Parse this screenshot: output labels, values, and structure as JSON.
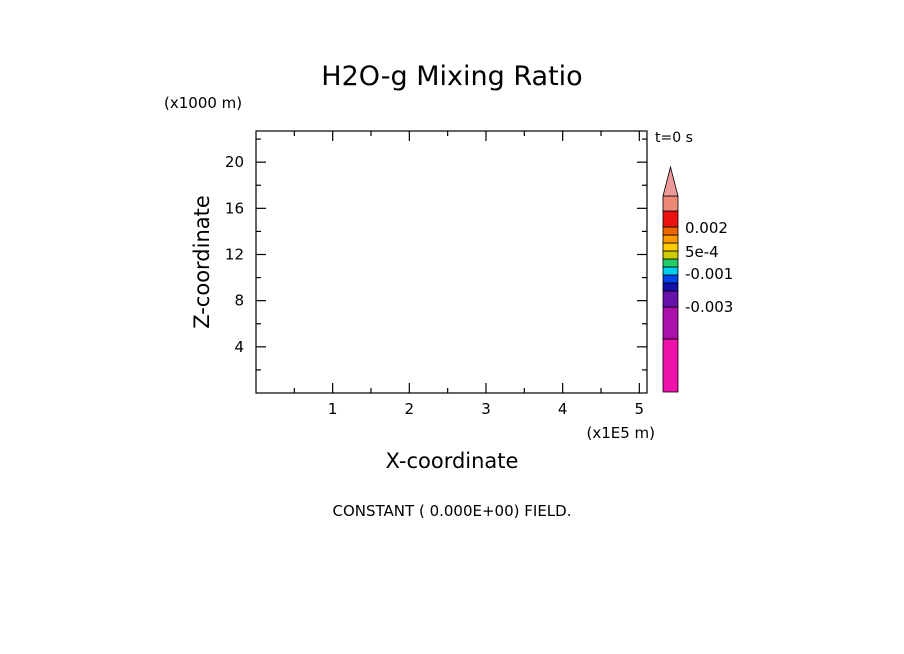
{
  "chart_data": {
    "type": "heatmap",
    "title": "H2O-g Mixing Ratio",
    "xlabel": "X-coordinate",
    "ylabel": "Z-coordinate",
    "x_unit": "(x1E5 m)",
    "y_unit": "(x1000 m)",
    "time_label": "t=0 s",
    "xlim": [
      0,
      5.1
    ],
    "ylim": [
      0,
      22.7
    ],
    "x_ticks": [
      "1",
      "2",
      "3",
      "4",
      "5"
    ],
    "y_ticks": [
      "4",
      "8",
      "12",
      "16",
      "20"
    ],
    "field_note": "CONSTANT ( 0.000E+00) FIELD.",
    "colorbar": {
      "levels": [
        "-0.003",
        "-0.001",
        "5e-4",
        "0.002"
      ],
      "colors": [
        "#ee11aa",
        "#aa11aa",
        "#6611aa",
        "#1111aa",
        "#0044ee",
        "#00ccee",
        "#22cc66",
        "#cccc00",
        "#ffcc00",
        "#ff9900",
        "#ee6600",
        "#ee1111",
        "#ee8877",
        "#ee9999"
      ]
    }
  }
}
